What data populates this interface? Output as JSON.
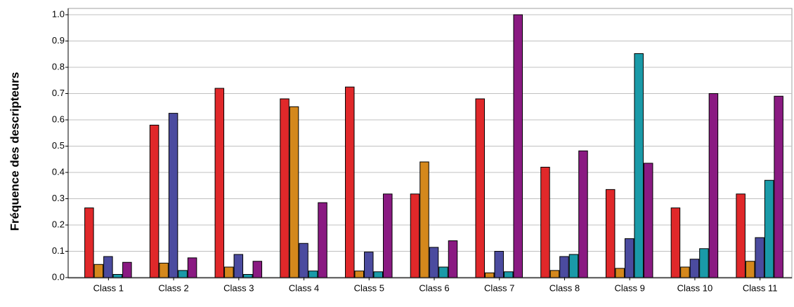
{
  "chart_data": {
    "type": "bar",
    "ylabel": "Fréquence des descripteurs",
    "categories": [
      "Class 1",
      "Class 2",
      "Class 3",
      "Class 4",
      "Class 5",
      "Class 6",
      "Class 7",
      "Class 8",
      "Class 9",
      "Class 10",
      "Class 11"
    ],
    "series": [
      {
        "color": "#e0282a",
        "values": [
          0.265,
          0.58,
          0.72,
          0.68,
          0.725,
          0.318,
          0.68,
          0.42,
          0.335,
          0.265,
          0.318
        ]
      },
      {
        "color": "#d4881c",
        "values": [
          0.05,
          0.055,
          0.04,
          0.65,
          0.025,
          0.44,
          0.018,
          0.027,
          0.035,
          0.04,
          0.062
        ]
      },
      {
        "color": "#4b4b9f",
        "values": [
          0.08,
          0.625,
          0.088,
          0.13,
          0.097,
          0.115,
          0.1,
          0.08,
          0.148,
          0.07,
          0.152
        ]
      },
      {
        "color": "#1a9aa8",
        "values": [
          0.012,
          0.027,
          0.012,
          0.025,
          0.022,
          0.04,
          0.022,
          0.088,
          0.852,
          0.11,
          0.37
        ]
      },
      {
        "color": "#8a1a82",
        "values": [
          0.058,
          0.075,
          0.062,
          0.285,
          0.318,
          0.14,
          1.0,
          0.482,
          0.435,
          0.7,
          0.69
        ]
      }
    ],
    "ylim": [
      0,
      1
    ],
    "yticks": [
      {
        "value": 0,
        "label": "0.0"
      },
      0.1,
      0.2,
      0.3,
      0.4,
      0.5,
      0.6,
      0.7,
      0.8,
      0.9,
      {
        "value": 1,
        "label": "1.0"
      }
    ],
    "grid": true
  }
}
